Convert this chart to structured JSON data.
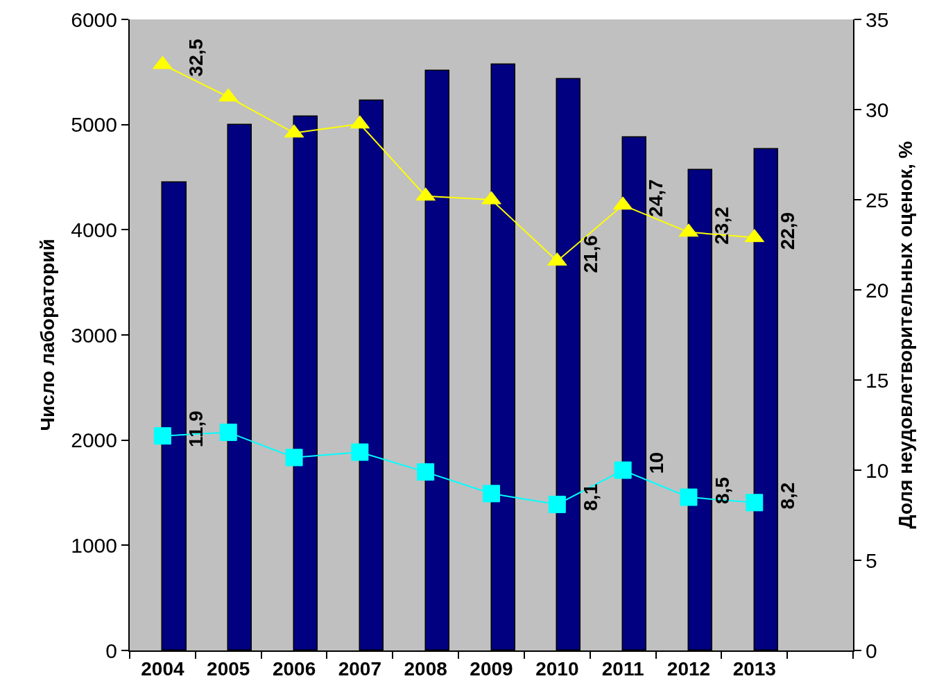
{
  "chart_data": {
    "type": "bar",
    "categories": [
      "2004",
      "2005",
      "2006",
      "2007",
      "2008",
      "2009",
      "2010",
      "2011",
      "2012",
      "2013"
    ],
    "ylabel": "Число лабораторий",
    "y2label": "Доля неудовлетворительных оценок, %",
    "ylim": [
      0,
      6000
    ],
    "yticks": [
      0,
      1000,
      2000,
      3000,
      4000,
      5000,
      6000
    ],
    "y2lim": [
      0,
      35
    ],
    "y2ticks": [
      0,
      5,
      10,
      15,
      20,
      25,
      30,
      35
    ],
    "grid": false,
    "series": [
      {
        "color": "#000080",
        "values": [
          4450,
          5000,
          5080,
          5230,
          5510,
          5570,
          5430,
          4880,
          4570,
          4770
        ]
      },
      {
        "type": "line",
        "axis": "y2",
        "color": "#ffff00",
        "marker": "triangle",
        "values": [
          32.5,
          30.7,
          28.7,
          29.2,
          25.2,
          25.0,
          21.6,
          24.7,
          23.2,
          22.9
        ],
        "value_labels": [
          "32,5",
          null,
          null,
          null,
          null,
          null,
          "21,6",
          "24,7",
          "23,2",
          "22,9"
        ]
      },
      {
        "type": "line",
        "axis": "y2",
        "color": "#00ffff",
        "marker": "square",
        "values": [
          11.9,
          12.1,
          10.7,
          11.0,
          9.9,
          8.7,
          8.1,
          10,
          8.5,
          8.2
        ],
        "value_labels": [
          "11,9",
          null,
          null,
          null,
          null,
          null,
          "8,1",
          "10",
          "8,5",
          "8,2"
        ]
      }
    ]
  }
}
